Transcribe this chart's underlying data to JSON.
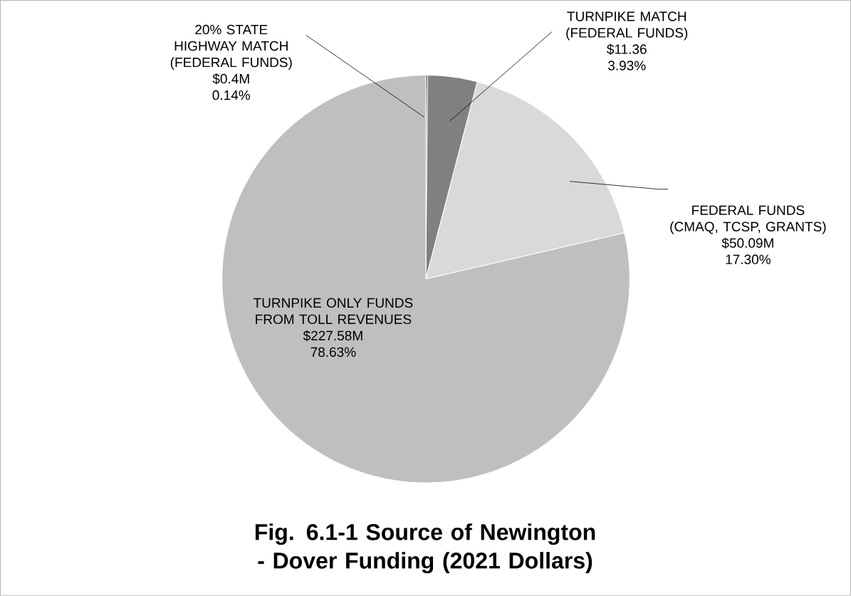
{
  "chart_data": {
    "type": "pie",
    "title": "Fig. 6.1-1 Source of Newington - Dover Funding (2021 Dollars)",
    "categories": [
      "20% STATE HIGHWAY MATCH (FEDERAL FUNDS)",
      "TURNPIKE MATCH (FEDERAL FUNDS)",
      "FEDERAL FUNDS (CMAQ, TCSP, GRANTS)",
      "TURNPIKE ONLY FUNDS FROM TOLL REVENUES"
    ],
    "values": [
      0.4,
      11.36,
      50.09,
      227.58
    ],
    "value_labels": [
      "$0.4M",
      "$11.36",
      "$50.09M",
      "$227.58M"
    ],
    "annotations": [
      "0.14%",
      "3.93%",
      "17.30%",
      "78.63%"
    ],
    "colors": [
      "#404040",
      "#808080",
      "#d9d9d9",
      "#bfbfbf"
    ]
  }
}
